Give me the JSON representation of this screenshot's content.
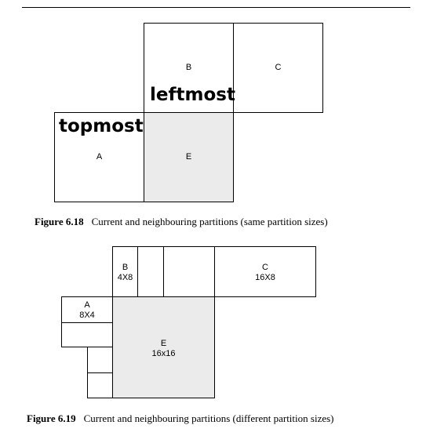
{
  "figure_618": {
    "blocks": {
      "A": {
        "name": "A"
      },
      "B": {
        "name": "B"
      },
      "C": {
        "name": "C"
      },
      "E": {
        "name": "E"
      }
    },
    "annotations": {
      "topmost": "topmost",
      "leftmost": "leftmost"
    },
    "caption": {
      "number": "Figure 6.18",
      "text": "Current and neighbouring partitions (same partition sizes)"
    }
  },
  "figure_619": {
    "blocks": {
      "A": {
        "name": "A",
        "size": "8X4"
      },
      "B": {
        "name": "B",
        "size": "4X8"
      },
      "C": {
        "name": "C",
        "size": "16X8"
      },
      "E": {
        "name": "E",
        "size": "16x16"
      }
    },
    "caption": {
      "number": "Figure 6.19",
      "text": "Current and neighbouring partitions (different partition sizes)"
    }
  },
  "colors": {
    "current_partition_fill": "#ebebeb",
    "border": "#000000"
  }
}
